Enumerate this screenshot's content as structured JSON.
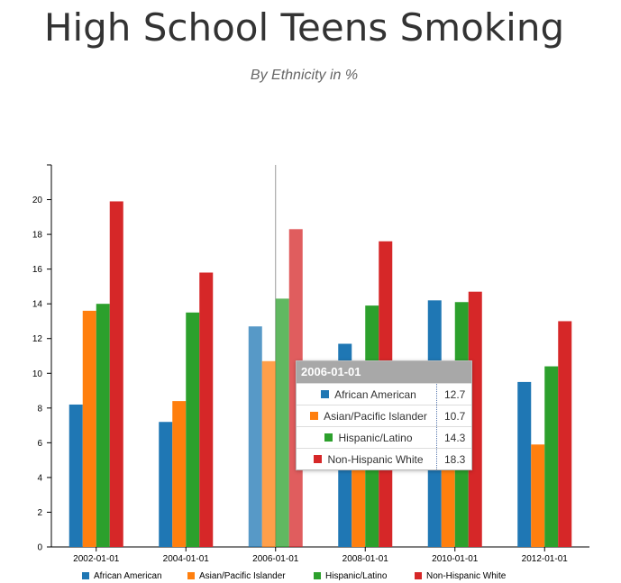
{
  "header": {
    "title": "High School Teens Smoking",
    "subtitle": "By Ethnicity in %"
  },
  "chart_data": {
    "type": "bar",
    "categories": [
      "2002-01-01",
      "2004-01-01",
      "2006-01-01",
      "2008-01-01",
      "2010-01-01",
      "2012-01-01"
    ],
    "series": [
      {
        "name": "African American",
        "color": "#1f77b4",
        "values": [
          8.2,
          7.2,
          12.7,
          11.7,
          14.2,
          9.5
        ]
      },
      {
        "name": "Asian/Pacific Islander",
        "color": "#ff7f0e",
        "values": [
          13.6,
          8.4,
          10.7,
          10.4,
          10.5,
          5.9
        ]
      },
      {
        "name": "Hispanic/Latino",
        "color": "#2ca02c",
        "values": [
          14.0,
          13.5,
          14.3,
          13.9,
          14.1,
          10.4
        ]
      },
      {
        "name": "Non-Hispanic White",
        "color": "#d62728",
        "values": [
          19.9,
          15.8,
          18.3,
          17.6,
          14.7,
          13.0
        ]
      }
    ],
    "yticks": [
      0,
      2,
      4,
      6,
      8,
      10,
      12,
      14,
      16,
      18,
      20
    ],
    "ylim": [
      0,
      22
    ],
    "grid": false,
    "legend": "bottom",
    "highlight_category": "2006-01-01"
  },
  "tooltip": {
    "title": "2006-01-01",
    "rows": [
      {
        "name": "African American",
        "value": "12.7",
        "color": "#1f77b4"
      },
      {
        "name": "Asian/Pacific Islander",
        "value": "10.7",
        "color": "#ff7f0e"
      },
      {
        "name": "Hispanic/Latino",
        "value": "14.3",
        "color": "#2ca02c"
      },
      {
        "name": "Non-Hispanic White",
        "value": "18.3",
        "color": "#d62728"
      }
    ]
  }
}
